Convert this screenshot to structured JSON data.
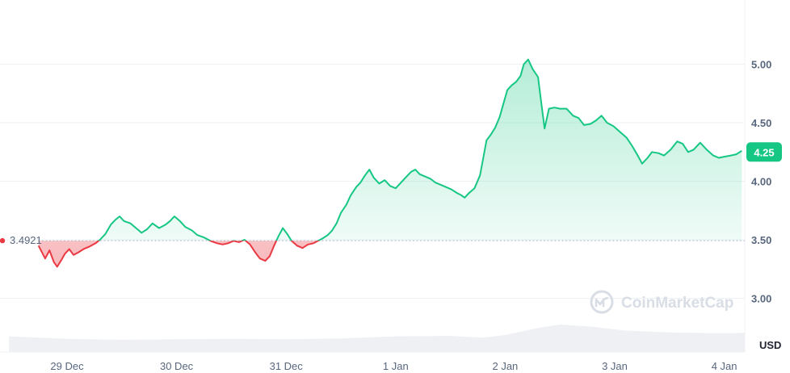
{
  "chart_data": {
    "type": "area",
    "currency_label": "USD",
    "baseline_value": 3.4921,
    "baseline_label": "3.4921",
    "current_value": 4.25,
    "current_label": "4.25",
    "ylim": [
      2.7,
      5.5
    ],
    "y_ticks": [
      {
        "value": 3.0,
        "label": "3.00"
      },
      {
        "value": 3.5,
        "label": "3.50"
      },
      {
        "value": 4.0,
        "label": "4.00"
      },
      {
        "value": 4.5,
        "label": "4.50"
      },
      {
        "value": 5.0,
        "label": "5.00"
      }
    ],
    "x_ticks": [
      {
        "value": 0,
        "label": "29 Dec"
      },
      {
        "value": 1,
        "label": "30 Dec"
      },
      {
        "value": 2,
        "label": "31 Dec"
      },
      {
        "value": 3,
        "label": "1 Jan"
      },
      {
        "value": 4,
        "label": "2 Jan"
      },
      {
        "value": 5,
        "label": "3 Jan"
      },
      {
        "value": 6,
        "label": "4 Jan"
      }
    ],
    "xlim": [
      -0.53,
      6.24
    ],
    "above_color": "#16c784",
    "below_color": "#ea3943",
    "series": [
      {
        "points": [
          [
            -0.26,
            3.45
          ],
          [
            -0.2,
            3.34
          ],
          [
            -0.16,
            3.41
          ],
          [
            -0.12,
            3.31
          ],
          [
            -0.09,
            3.27
          ],
          [
            -0.05,
            3.33
          ],
          [
            -0.02,
            3.38
          ],
          [
            0.02,
            3.42
          ],
          [
            0.06,
            3.37
          ],
          [
            0.1,
            3.39
          ],
          [
            0.15,
            3.42
          ],
          [
            0.2,
            3.44
          ],
          [
            0.26,
            3.47
          ],
          [
            0.3,
            3.5
          ],
          [
            0.35,
            3.55
          ],
          [
            0.4,
            3.63
          ],
          [
            0.44,
            3.67
          ],
          [
            0.48,
            3.7
          ],
          [
            0.52,
            3.66
          ],
          [
            0.58,
            3.64
          ],
          [
            0.63,
            3.6
          ],
          [
            0.68,
            3.56
          ],
          [
            0.73,
            3.59
          ],
          [
            0.78,
            3.64
          ],
          [
            0.84,
            3.6
          ],
          [
            0.9,
            3.63
          ],
          [
            0.94,
            3.66
          ],
          [
            0.98,
            3.7
          ],
          [
            1.03,
            3.66
          ],
          [
            1.08,
            3.61
          ],
          [
            1.14,
            3.58
          ],
          [
            1.19,
            3.54
          ],
          [
            1.25,
            3.52
          ],
          [
            1.31,
            3.49
          ],
          [
            1.37,
            3.47
          ],
          [
            1.42,
            3.46
          ],
          [
            1.47,
            3.47
          ],
          [
            1.52,
            3.49
          ],
          [
            1.57,
            3.48
          ],
          [
            1.62,
            3.5
          ],
          [
            1.67,
            3.46
          ],
          [
            1.72,
            3.39
          ],
          [
            1.76,
            3.34
          ],
          [
            1.81,
            3.32
          ],
          [
            1.85,
            3.36
          ],
          [
            1.89,
            3.45
          ],
          [
            1.93,
            3.53
          ],
          [
            1.97,
            3.6
          ],
          [
            2.01,
            3.55
          ],
          [
            2.05,
            3.49
          ],
          [
            2.1,
            3.45
          ],
          [
            2.15,
            3.43
          ],
          [
            2.2,
            3.46
          ],
          [
            2.25,
            3.47
          ],
          [
            2.29,
            3.49
          ],
          [
            2.33,
            3.51
          ],
          [
            2.38,
            3.54
          ],
          [
            2.42,
            3.58
          ],
          [
            2.46,
            3.64
          ],
          [
            2.5,
            3.73
          ],
          [
            2.55,
            3.8
          ],
          [
            2.59,
            3.88
          ],
          [
            2.64,
            3.95
          ],
          [
            2.68,
            3.99
          ],
          [
            2.72,
            4.05
          ],
          [
            2.76,
            4.1
          ],
          [
            2.8,
            4.03
          ],
          [
            2.85,
            3.98
          ],
          [
            2.9,
            4.01
          ],
          [
            2.95,
            3.96
          ],
          [
            3.0,
            3.94
          ],
          [
            3.04,
            3.98
          ],
          [
            3.09,
            4.03
          ],
          [
            3.14,
            4.08
          ],
          [
            3.18,
            4.1
          ],
          [
            3.22,
            4.06
          ],
          [
            3.27,
            4.04
          ],
          [
            3.32,
            4.02
          ],
          [
            3.36,
            3.99
          ],
          [
            3.41,
            3.97
          ],
          [
            3.46,
            3.95
          ],
          [
            3.51,
            3.93
          ],
          [
            3.56,
            3.9
          ],
          [
            3.6,
            3.88
          ],
          [
            3.63,
            3.86
          ],
          [
            3.67,
            3.9
          ],
          [
            3.72,
            3.94
          ],
          [
            3.77,
            4.05
          ],
          [
            3.8,
            4.2
          ],
          [
            3.83,
            4.35
          ],
          [
            3.87,
            4.4
          ],
          [
            3.91,
            4.46
          ],
          [
            3.95,
            4.55
          ],
          [
            3.98,
            4.65
          ],
          [
            4.02,
            4.78
          ],
          [
            4.06,
            4.82
          ],
          [
            4.1,
            4.85
          ],
          [
            4.14,
            4.9
          ],
          [
            4.17,
            5.0
          ],
          [
            4.21,
            5.04
          ],
          [
            4.25,
            4.96
          ],
          [
            4.3,
            4.89
          ],
          [
            4.33,
            4.67
          ],
          [
            4.36,
            4.45
          ],
          [
            4.4,
            4.62
          ],
          [
            4.45,
            4.63
          ],
          [
            4.5,
            4.62
          ],
          [
            4.56,
            4.62
          ],
          [
            4.62,
            4.56
          ],
          [
            4.67,
            4.54
          ],
          [
            4.72,
            4.48
          ],
          [
            4.78,
            4.49
          ],
          [
            4.83,
            4.52
          ],
          [
            4.88,
            4.56
          ],
          [
            4.93,
            4.5
          ],
          [
            4.99,
            4.47
          ],
          [
            5.05,
            4.42
          ],
          [
            5.11,
            4.37
          ],
          [
            5.16,
            4.3
          ],
          [
            5.21,
            4.22
          ],
          [
            5.25,
            4.15
          ],
          [
            5.3,
            4.2
          ],
          [
            5.34,
            4.25
          ],
          [
            5.4,
            4.24
          ],
          [
            5.45,
            4.22
          ],
          [
            5.51,
            4.27
          ],
          [
            5.57,
            4.34
          ],
          [
            5.62,
            4.32
          ],
          [
            5.67,
            4.25
          ],
          [
            5.72,
            4.27
          ],
          [
            5.78,
            4.33
          ],
          [
            5.84,
            4.27
          ],
          [
            5.9,
            4.22
          ],
          [
            5.95,
            4.2
          ],
          [
            6.0,
            4.21
          ],
          [
            6.06,
            4.22
          ],
          [
            6.11,
            4.23
          ],
          [
            6.16,
            4.26
          ]
        ]
      }
    ],
    "volume": {
      "description_free": true,
      "points": [
        [
          -0.53,
          0.36
        ],
        [
          0.0,
          0.3
        ],
        [
          0.5,
          0.28
        ],
        [
          1.0,
          0.29
        ],
        [
          1.5,
          0.3
        ],
        [
          2.0,
          0.29
        ],
        [
          2.5,
          0.31
        ],
        [
          3.0,
          0.36
        ],
        [
          3.5,
          0.37
        ],
        [
          3.8,
          0.33
        ],
        [
          4.0,
          0.39
        ],
        [
          4.3,
          0.55
        ],
        [
          4.5,
          0.63
        ],
        [
          4.8,
          0.58
        ],
        [
          5.1,
          0.49
        ],
        [
          5.5,
          0.45
        ],
        [
          6.0,
          0.43
        ],
        [
          6.24,
          0.44
        ]
      ]
    }
  },
  "watermark": {
    "brand": "CoinMarketCap",
    "icon": "coinmarketcap-logo-icon"
  }
}
